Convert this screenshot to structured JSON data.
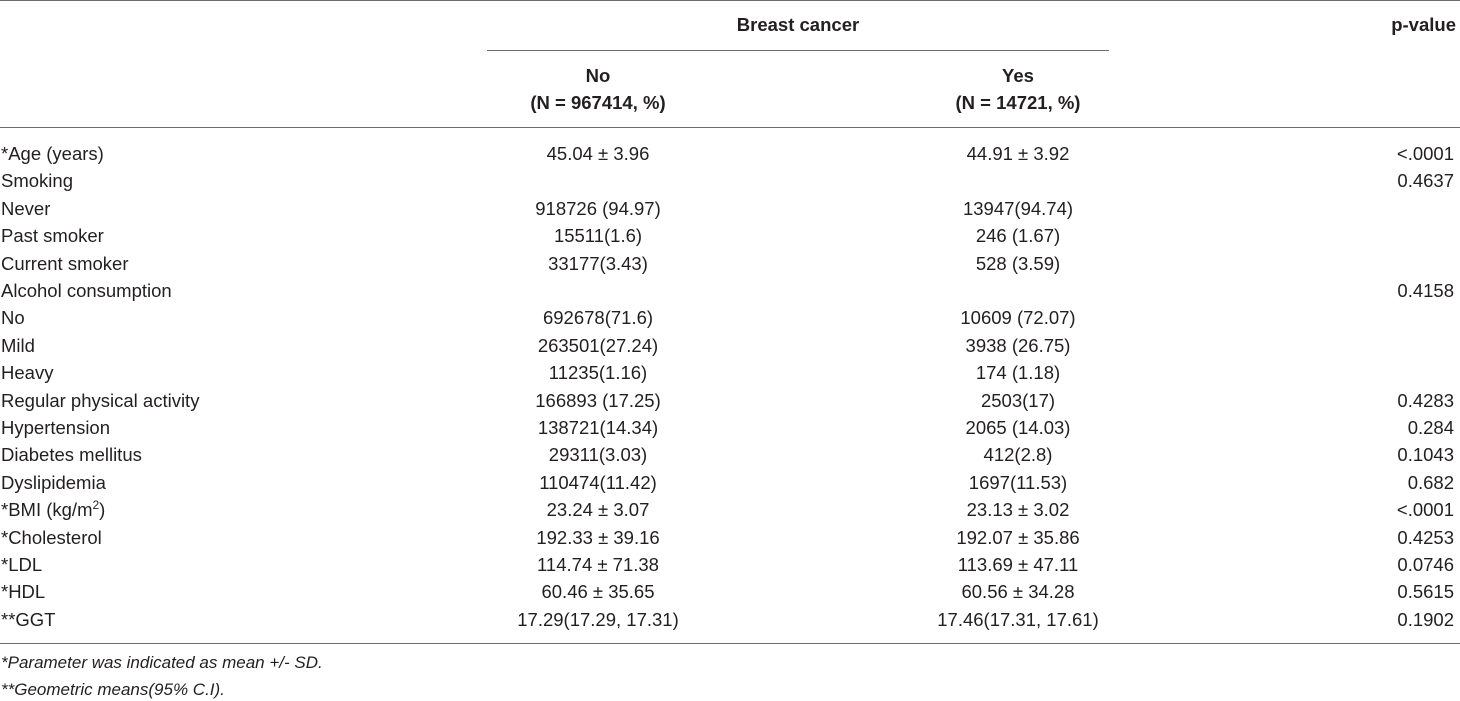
{
  "header": {
    "group_label": "Breast cancer",
    "pvalue_label": "p-value",
    "no_label": "No",
    "no_n": "(N = 967414, %)",
    "yes_label": "Yes",
    "yes_n": "(N = 14721, %)"
  },
  "rows": [
    {
      "label": "*Age (years)",
      "no": "45.04 ± 3.96",
      "yes": "44.91 ± 3.92",
      "p": "<.0001"
    },
    {
      "label": "Smoking",
      "no": "",
      "yes": "",
      "p": "0.4637"
    },
    {
      "label": "Never",
      "no": "918726 (94.97)",
      "yes": "13947(94.74)",
      "p": ""
    },
    {
      "label": "Past smoker",
      "no": "15511(1.6)",
      "yes": "246 (1.67)",
      "p": ""
    },
    {
      "label": "Current smoker",
      "no": "33177(3.43)",
      "yes": "528 (3.59)",
      "p": ""
    },
    {
      "label": "Alcohol consumption",
      "no": "",
      "yes": "",
      "p": "0.4158"
    },
    {
      "label": "No",
      "no": "692678(71.6)",
      "yes": "10609 (72.07)",
      "p": ""
    },
    {
      "label": "Mild",
      "no": "263501(27.24)",
      "yes": "3938 (26.75)",
      "p": ""
    },
    {
      "label": "Heavy",
      "no": "11235(1.16)",
      "yes": "174 (1.18)",
      "p": ""
    },
    {
      "label": "Regular physical activity",
      "no": "166893 (17.25)",
      "yes": "2503(17)",
      "p": "0.4283"
    },
    {
      "label": "Hypertension",
      "no": "138721(14.34)",
      "yes": "2065 (14.03)",
      "p": "0.284"
    },
    {
      "label": "Diabetes mellitus",
      "no": "29311(3.03)",
      "yes": "412(2.8)",
      "p": "0.1043"
    },
    {
      "label": "Dyslipidemia",
      "no": "110474(11.42)",
      "yes": "1697(11.53)",
      "p": "0.682"
    },
    {
      "label": "*BMI (kg/m",
      "label_sup": "2",
      "label_tail": ")",
      "no": "23.24 ± 3.07",
      "yes": "23.13 ± 3.02",
      "p": "<.0001"
    },
    {
      "label": "*Cholesterol",
      "no": "192.33 ± 39.16",
      "yes": "192.07 ± 35.86",
      "p": "0.4253"
    },
    {
      "label": "*LDL",
      "no": "114.74 ± 71.38",
      "yes": "113.69 ± 47.11",
      "p": "0.0746"
    },
    {
      "label": "*HDL",
      "no": "60.46 ± 35.65",
      "yes": "60.56 ± 34.28",
      "p": "0.5615"
    },
    {
      "label": "**GGT",
      "no": "17.29(17.29, 17.31)",
      "yes": "17.46(17.31, 17.61)",
      "p": "0.1902"
    }
  ],
  "notes": [
    "*Parameter was indicated as mean +/- SD.",
    "**Geometric means(95% C.I)."
  ]
}
